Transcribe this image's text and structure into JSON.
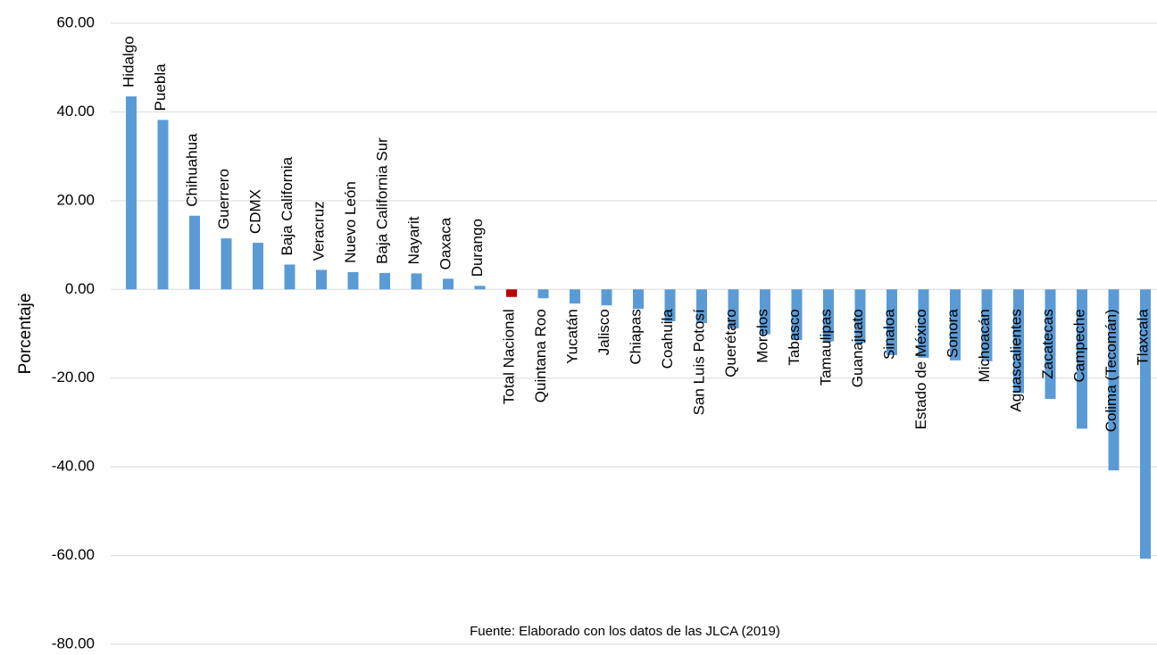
{
  "chart_data": {
    "type": "bar",
    "title": "",
    "xlabel": "",
    "ylabel": "Porcentaje",
    "ylim": [
      -80,
      60
    ],
    "yticks": [
      60,
      40,
      20,
      0,
      -20,
      -40,
      -60,
      -80
    ],
    "ytick_labels": [
      "60.00",
      "40.00",
      "20.00",
      "0.00",
      "-20.00",
      "-40.00",
      "-60.00",
      "-80.00"
    ],
    "grid": true,
    "legend": "none",
    "categories": [
      "Hidalgo",
      "Puebla",
      "Chihuahua",
      "Guerrero",
      "CDMX",
      "Baja California",
      "Veracruz",
      "Nuevo León",
      "Baja California Sur",
      "Nayarit",
      "Oaxaca",
      "Durango",
      "Total Nacional",
      "Quintana Roo",
      "Yucatán",
      "Jalisco",
      "Chiapas",
      "Coahuila",
      "San Luis Potosí",
      "Querétaro",
      "Morelos",
      "Tabasco",
      "Tamaulipas",
      "Guanajuato",
      "Sinaloa",
      "Estado de México",
      "Sonora",
      "Michoacán",
      "Aguascalientes",
      "Zacatecas",
      "Campeche",
      "Colima (Tecomán)",
      "Tlaxcala"
    ],
    "values": [
      43.5,
      38.2,
      16.6,
      11.5,
      10.5,
      5.6,
      4.4,
      3.9,
      3.7,
      3.6,
      2.4,
      0.8,
      -1.7,
      -2.0,
      -3.2,
      -3.6,
      -4.4,
      -7.2,
      -7.6,
      -8.8,
      -10.1,
      -11.4,
      -11.7,
      -12.1,
      -14.8,
      -15.4,
      -16.0,
      -16.2,
      -23.4,
      -24.7,
      -31.4,
      -40.8,
      -60.7
    ],
    "colors": {
      "bar": "#5b9bd5",
      "highlight": "#c00000",
      "grid": "#d9d9d9"
    },
    "highlight_category": "Total Nacional",
    "annotation": "Fuente: Elaborado con los datos de las JLCA (2019)"
  }
}
